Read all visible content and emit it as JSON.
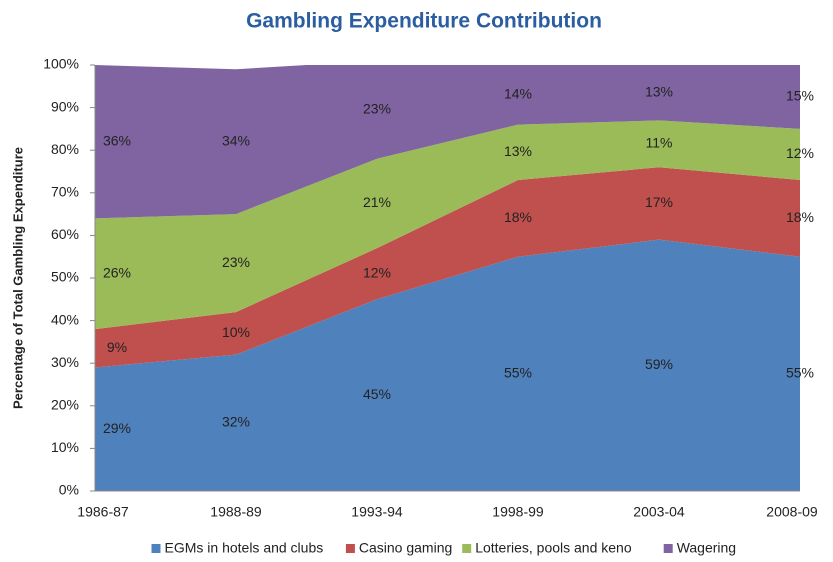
{
  "chart_data": {
    "type": "stacked_area",
    "title": "Gambling Expenditure Contribution",
    "y_label": "Percentage of Total Gambling Expenditure",
    "categories": [
      "1986-87",
      "1988-89",
      "1993-94",
      "1998-99",
      "2003-04",
      "2008-09"
    ],
    "series": [
      {
        "name": "EGMs in hotels and clubs",
        "color": "#4f81bd",
        "values": [
          29,
          32,
          45,
          55,
          59,
          55
        ],
        "value_labels": [
          "29%",
          "32%",
          "45%",
          "55%",
          "59%",
          "55%"
        ]
      },
      {
        "name": "Casino gaming",
        "color": "#c0504d",
        "values": [
          9,
          10,
          12,
          18,
          17,
          18
        ],
        "value_labels": [
          "9%",
          "10%",
          "12%",
          "18%",
          "17%",
          "18%"
        ]
      },
      {
        "name": "Lotteries, pools and keno",
        "color": "#9bbb59",
        "values": [
          26,
          23,
          21,
          13,
          11,
          12
        ],
        "value_labels": [
          "26%",
          "23%",
          "21%",
          "13%",
          "11%",
          "12%"
        ]
      },
      {
        "name": "Wagering",
        "color": "#8064a2",
        "values": [
          36,
          34,
          23,
          14,
          13,
          15
        ],
        "value_labels": [
          "36%",
          "34%",
          "23%",
          "14%",
          "13%",
          "15%"
        ]
      }
    ],
    "ylim": [
      0,
      100
    ],
    "yticks": [
      {
        "value": 0,
        "label": "0%"
      },
      {
        "value": 10,
        "label": "10%"
      },
      {
        "value": 20,
        "label": "20%"
      },
      {
        "value": 30,
        "label": "30%"
      },
      {
        "value": 40,
        "label": "40%"
      },
      {
        "value": 50,
        "label": "50%"
      },
      {
        "value": 60,
        "label": "60%"
      },
      {
        "value": 70,
        "label": "70%"
      },
      {
        "value": 80,
        "label": "80%"
      },
      {
        "value": 90,
        "label": "90%"
      },
      {
        "value": 100,
        "label": "100%"
      }
    ],
    "legend": "bottom"
  }
}
